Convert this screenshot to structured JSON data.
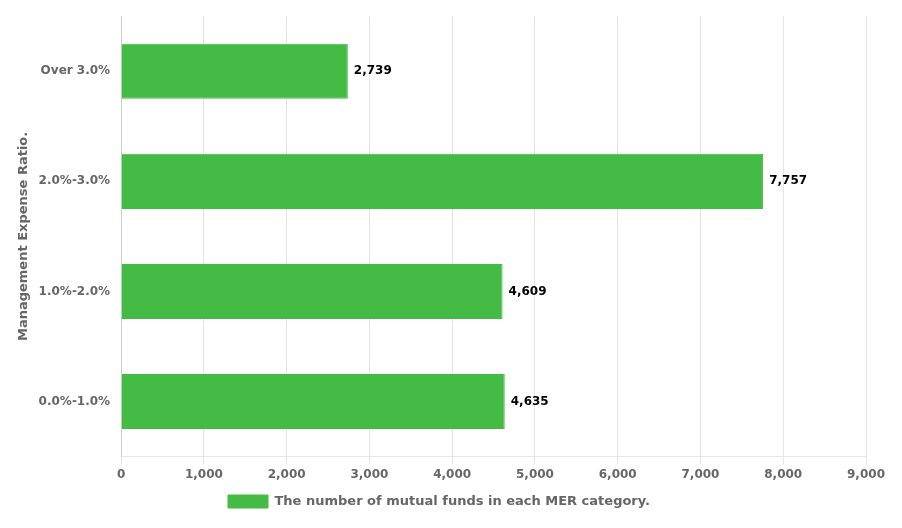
{
  "chart_data": {
    "type": "bar",
    "orientation": "horizontal",
    "categories": [
      "0.0%-1.0%",
      "1.0%-2.0%",
      "2.0%-3.0%",
      "Over 3.0%"
    ],
    "series": [
      {
        "name": "The number of mutual funds in each MER category.",
        "color": "#44bb44",
        "values": [
          4635,
          4609,
          7757,
          2739
        ],
        "value_labels": [
          "4,635",
          "4,609",
          "7,757",
          "2,739"
        ]
      }
    ],
    "ylabel": "Management Expense Ratio.",
    "xlim": [
      0,
      9000
    ],
    "xticks": [
      0,
      {
        "value": 1000,
        "label": "1,000"
      },
      {
        "value": 2000,
        "label": "2,000"
      },
      {
        "value": 3000,
        "label": "3,000"
      },
      {
        "value": 4000,
        "label": "4,000"
      },
      {
        "value": 5000,
        "label": "5,000"
      },
      {
        "value": 6000,
        "label": "6,000"
      },
      {
        "value": 7000,
        "label": "7,000"
      },
      {
        "value": 8000,
        "label": "8,000"
      },
      {
        "value": 9000,
        "label": "9,000"
      }
    ],
    "grid": true,
    "legend": "bottom",
    "data_labels": true
  }
}
